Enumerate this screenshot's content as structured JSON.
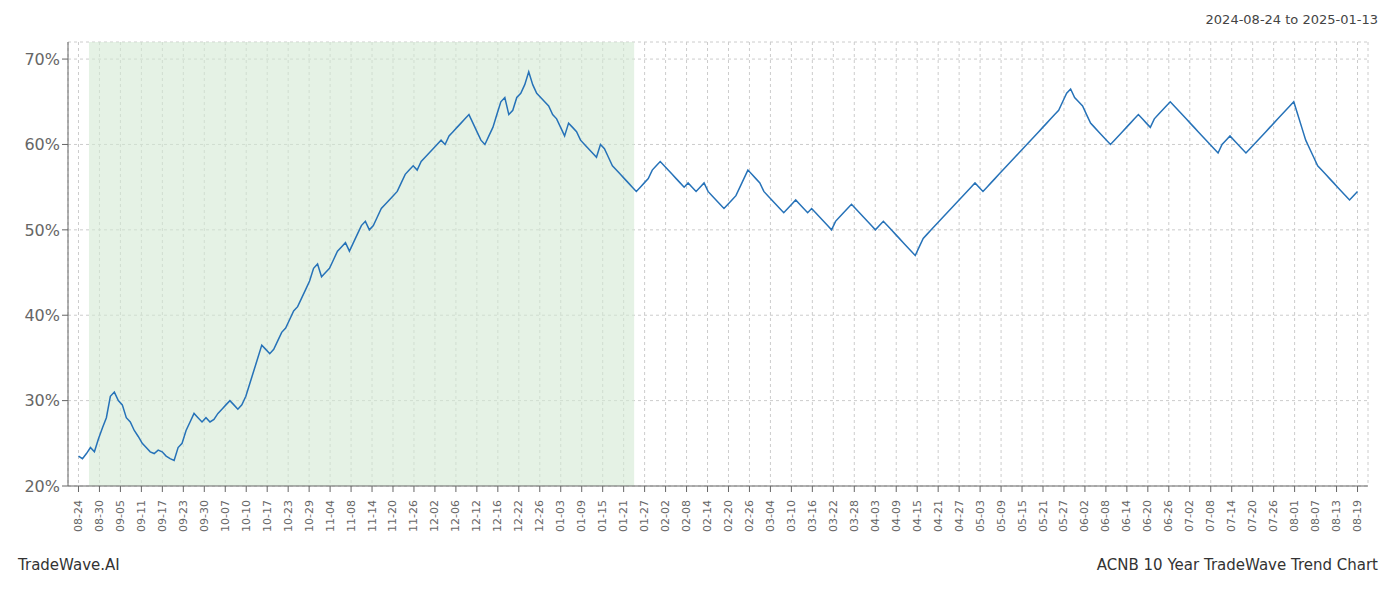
{
  "chart_data": {
    "type": "line",
    "title": "ACNB 10 Year TradeWave Trend Chart",
    "subtitle": "2024-08-24 to 2025-01-13",
    "annotations": [
      "TradeWave.AI"
    ],
    "color": "#2672b8",
    "grid": true,
    "ylim": [
      20,
      72
    ],
    "yticks": [
      {
        "value": 20,
        "label": "20%"
      },
      {
        "value": 30,
        "label": "30%"
      },
      {
        "value": 40,
        "label": "40%"
      },
      {
        "value": 50,
        "label": "50%"
      },
      {
        "value": 60,
        "label": "60%"
      },
      {
        "value": 70,
        "label": "70%"
      }
    ],
    "xlim": [
      -2.6311,
      323.6311
    ],
    "xticks": [
      {
        "value": 0,
        "label": "08-24"
      },
      {
        "value": 5.2623,
        "label": "08-30"
      },
      {
        "value": 10.5246,
        "label": "09-05"
      },
      {
        "value": 15.7869,
        "label": "09-11"
      },
      {
        "value": 21.0492,
        "label": "09-17"
      },
      {
        "value": 26.3115,
        "label": "09-23"
      },
      {
        "value": 31.5738,
        "label": "09-30"
      },
      {
        "value": 36.8361,
        "label": "10-07"
      },
      {
        "value": 42.0984,
        "label": "10-10"
      },
      {
        "value": 47.3607,
        "label": "10-17"
      },
      {
        "value": 52.623,
        "label": "10-23"
      },
      {
        "value": 57.8852,
        "label": "10-29"
      },
      {
        "value": 63.1475,
        "label": "11-04"
      },
      {
        "value": 68.4098,
        "label": "11-08"
      },
      {
        "value": 73.6721,
        "label": "11-14"
      },
      {
        "value": 78.9344,
        "label": "11-20"
      },
      {
        "value": 84.1967,
        "label": "11-26"
      },
      {
        "value": 89.459,
        "label": "12-02"
      },
      {
        "value": 94.7213,
        "label": "12-06"
      },
      {
        "value": 99.9836,
        "label": "12-12"
      },
      {
        "value": 105.2459,
        "label": "12-16"
      },
      {
        "value": 110.5082,
        "label": "12-22"
      },
      {
        "value": 115.7705,
        "label": "12-26"
      },
      {
        "value": 121.0328,
        "label": "01-03"
      },
      {
        "value": 126.2951,
        "label": "01-09"
      },
      {
        "value": 131.5574,
        "label": "01-15"
      },
      {
        "value": 136.8197,
        "label": "01-21"
      },
      {
        "value": 142.082,
        "label": "01-27"
      },
      {
        "value": 147.3443,
        "label": "02-02"
      },
      {
        "value": 152.6066,
        "label": "02-08"
      },
      {
        "value": 157.8689,
        "label": "02-14"
      },
      {
        "value": 163.1311,
        "label": "02-20"
      },
      {
        "value": 168.3934,
        "label": "02-26"
      },
      {
        "value": 173.6557,
        "label": "03-04"
      },
      {
        "value": 178.918,
        "label": "03-10"
      },
      {
        "value": 184.1803,
        "label": "03-16"
      },
      {
        "value": 189.4426,
        "label": "03-22"
      },
      {
        "value": 194.7049,
        "label": "03-28"
      },
      {
        "value": 199.9672,
        "label": "04-03"
      },
      {
        "value": 205.2295,
        "label": "04-09"
      },
      {
        "value": 210.4918,
        "label": "04-15"
      },
      {
        "value": 215.7541,
        "label": "04-21"
      },
      {
        "value": 221.0164,
        "label": "04-27"
      },
      {
        "value": 226.2787,
        "label": "05-03"
      },
      {
        "value": 231.541,
        "label": "05-09"
      },
      {
        "value": 236.8033,
        "label": "05-15"
      },
      {
        "value": 242.0656,
        "label": "05-21"
      },
      {
        "value": 247.3279,
        "label": "05-27"
      },
      {
        "value": 252.5902,
        "label": "06-02"
      },
      {
        "value": 257.8525,
        "label": "06-08"
      },
      {
        "value": 263.1148,
        "label": "06-14"
      },
      {
        "value": 268.377,
        "label": "06-20"
      },
      {
        "value": 273.6393,
        "label": "06-26"
      },
      {
        "value": 278.9016,
        "label": "07-02"
      },
      {
        "value": 284.1639,
        "label": "07-08"
      },
      {
        "value": 289.4262,
        "label": "07-14"
      },
      {
        "value": 294.6885,
        "label": "07-20"
      },
      {
        "value": 299.9508,
        "label": "07-26"
      },
      {
        "value": 305.2131,
        "label": "08-01"
      },
      {
        "value": 310.4754,
        "label": "08-07"
      },
      {
        "value": 315.7377,
        "label": "08-13"
      },
      {
        "value": 321,
        "label": "08-19"
      }
    ],
    "shaded_region": {
      "x": [
        2.6311,
        139.4508
      ],
      "color": "#d4ead4"
    },
    "x": [
      0,
      1,
      2,
      3,
      4,
      5,
      6,
      7,
      8,
      9,
      10,
      11,
      12,
      13,
      14,
      15,
      16,
      17,
      18,
      19,
      20,
      21,
      22,
      23,
      24,
      25,
      26,
      27,
      28,
      29,
      30,
      31,
      32,
      33,
      34,
      35,
      36,
      37,
      38,
      39,
      40,
      41,
      42,
      43,
      44,
      45,
      46,
      47,
      48,
      49,
      50,
      51,
      52,
      53,
      54,
      55,
      56,
      57,
      58,
      59,
      60,
      61,
      62,
      63,
      64,
      65,
      66,
      67,
      68,
      69,
      70,
      71,
      72,
      73,
      74,
      75,
      76,
      77,
      78,
      79,
      80,
      81,
      82,
      83,
      84,
      85,
      86,
      87,
      88,
      89,
      90,
      91,
      92,
      93,
      94,
      95,
      96,
      97,
      98,
      99,
      100,
      101,
      102,
      103,
      104,
      105,
      106,
      107,
      108,
      109,
      110,
      111,
      112,
      113,
      114,
      115,
      116,
      117,
      118,
      119,
      120,
      121,
      122,
      123,
      124,
      125,
      126,
      127,
      128,
      129,
      130,
      131,
      132,
      133,
      134,
      135,
      136,
      137,
      138,
      139,
      140,
      141,
      142,
      143,
      144,
      145,
      146,
      147,
      148,
      149,
      150,
      151,
      152,
      153,
      154,
      155,
      156,
      157,
      158,
      159,
      160,
      161,
      162,
      163,
      164,
      165,
      166,
      167,
      168,
      169,
      170,
      171,
      172,
      173,
      174,
      175,
      176,
      177,
      178,
      179,
      180,
      181,
      182,
      183,
      184,
      185,
      186,
      187,
      188,
      189,
      190,
      191,
      192,
      193,
      194,
      195,
      196,
      197,
      198,
      199,
      200,
      201,
      202,
      203,
      204,
      205,
      206,
      207,
      208,
      209,
      210,
      211,
      212,
      213,
      214,
      215,
      216,
      217,
      218,
      219,
      220,
      221,
      222,
      223,
      224,
      225,
      226,
      227,
      228,
      229,
      230,
      231,
      232,
      233,
      234,
      235,
      236,
      237,
      238,
      239,
      240,
      241,
      242,
      243,
      244,
      245,
      246,
      247,
      248,
      249,
      250,
      251,
      252,
      253,
      254,
      255,
      256,
      257,
      258,
      259,
      260,
      261,
      262,
      263,
      264,
      265,
      266,
      267,
      268,
      269,
      270,
      271,
      272,
      273,
      274,
      275,
      276,
      277,
      278,
      279,
      280,
      281,
      282,
      283,
      284,
      285,
      286,
      287,
      288,
      289,
      290,
      291,
      292,
      293,
      294,
      295,
      296,
      297,
      298,
      299,
      300,
      301,
      302,
      303,
      304,
      305,
      306,
      307,
      308,
      309,
      310,
      311,
      312,
      313,
      314,
      315,
      316,
      317,
      318,
      319,
      320,
      321
    ],
    "values": [
      23.5,
      23.2,
      23.8,
      24.5,
      24.0,
      25.5,
      26.8,
      28.0,
      30.5,
      31.0,
      30.0,
      29.5,
      28.0,
      27.5,
      26.5,
      25.8,
      25.0,
      24.5,
      24.0,
      23.8,
      24.2,
      24.0,
      23.5,
      23.2,
      23.0,
      24.5,
      25.0,
      26.5,
      27.5,
      28.5,
      28.0,
      27.5,
      28.0,
      27.5,
      27.8,
      28.5,
      29.0,
      29.5,
      30.0,
      29.5,
      29.0,
      29.5,
      30.5,
      32.0,
      33.5,
      35.0,
      36.5,
      36.0,
      35.5,
      36.0,
      37.0,
      38.0,
      38.5,
      39.5,
      40.5,
      41.0,
      42.0,
      43.0,
      44.0,
      45.5,
      46.0,
      44.5,
      45.0,
      45.5,
      46.5,
      47.5,
      48.0,
      48.5,
      47.5,
      48.5,
      49.5,
      50.5,
      51.0,
      50.0,
      50.5,
      51.5,
      52.5,
      53.0,
      53.5,
      54.0,
      54.5,
      55.5,
      56.5,
      57.0,
      57.5,
      57.0,
      58.0,
      58.5,
      59.0,
      59.5,
      60.0,
      60.5,
      60.0,
      61.0,
      61.5,
      62.0,
      62.5,
      63.0,
      63.5,
      62.5,
      61.5,
      60.5,
      60.0,
      61.0,
      62.0,
      63.5,
      65.0,
      65.5,
      63.5,
      64.0,
      65.5,
      66.0,
      67.0,
      68.5,
      67.0,
      66.0,
      65.5,
      65.0,
      64.5,
      63.5,
      63.0,
      62.0,
      61.0,
      62.5,
      62.0,
      61.5,
      60.5,
      60.0,
      59.5,
      59.0,
      58.5,
      60.0,
      59.5,
      58.5,
      57.5,
      57.0,
      56.5,
      56.0,
      55.5,
      55.0,
      54.5,
      55.0,
      55.5,
      56.0,
      57.0,
      57.5,
      58.0,
      57.5,
      57.0,
      56.5,
      56.0,
      55.5,
      55.0,
      55.5,
      55.0,
      54.5,
      55.0,
      55.5,
      54.5,
      54.0,
      53.5,
      53.0,
      52.5,
      53.0,
      53.5,
      54.0,
      55.0,
      56.0,
      57.0,
      56.5,
      56.0,
      55.5,
      54.5,
      54.0,
      53.5,
      53.0,
      52.5,
      52.0,
      52.5,
      53.0,
      53.5,
      53.0,
      52.5,
      52.0,
      52.5,
      52.0,
      51.5,
      51.0,
      50.5,
      50.0,
      51.0,
      51.5,
      52.0,
      52.5,
      53.0,
      52.5,
      52.0,
      51.5,
      51.0,
      50.5,
      50.0,
      50.5,
      51.0,
      50.5,
      50.0,
      49.5,
      49.0,
      48.5,
      48.0,
      47.5,
      47.0,
      48.0,
      49.0,
      49.5,
      50.0,
      50.5,
      51.0,
      51.5,
      52.0,
      52.5,
      53.0,
      53.5,
      54.0,
      54.5,
      55.0,
      55.5,
      55.0,
      54.5,
      55.0,
      55.5,
      56.0,
      56.5,
      57.0,
      57.5,
      58.0,
      58.5,
      59.0,
      59.5,
      60.0,
      60.5,
      61.0,
      61.5,
      62.0,
      62.5,
      63.0,
      63.5,
      64.0,
      65.0,
      66.0,
      66.5,
      65.5,
      65.0,
      64.5,
      63.5,
      62.5,
      62.0,
      61.5,
      61.0,
      60.5,
      60.0,
      60.5,
      61.0,
      61.5,
      62.0,
      62.5,
      63.0,
      63.5,
      63.0,
      62.5,
      62.0,
      63.0,
      63.5,
      64.0,
      64.5,
      65.0,
      64.5,
      64.0,
      63.5,
      63.0,
      62.5,
      62.0,
      61.5,
      61.0,
      60.5,
      60.0,
      59.5,
      59.0,
      60.0,
      60.5,
      61.0,
      60.5,
      60.0,
      59.5,
      59.0,
      59.5,
      60.0,
      60.5,
      61.0,
      61.5,
      62.0,
      62.5,
      63.0,
      63.5,
      64.0,
      64.5,
      65.0,
      63.5,
      62.0,
      60.5,
      59.5,
      58.5,
      57.5,
      57.0,
      56.5,
      56.0,
      55.5,
      55.0,
      54.5,
      54.0,
      53.5,
      54.0,
      54.5
    ]
  }
}
